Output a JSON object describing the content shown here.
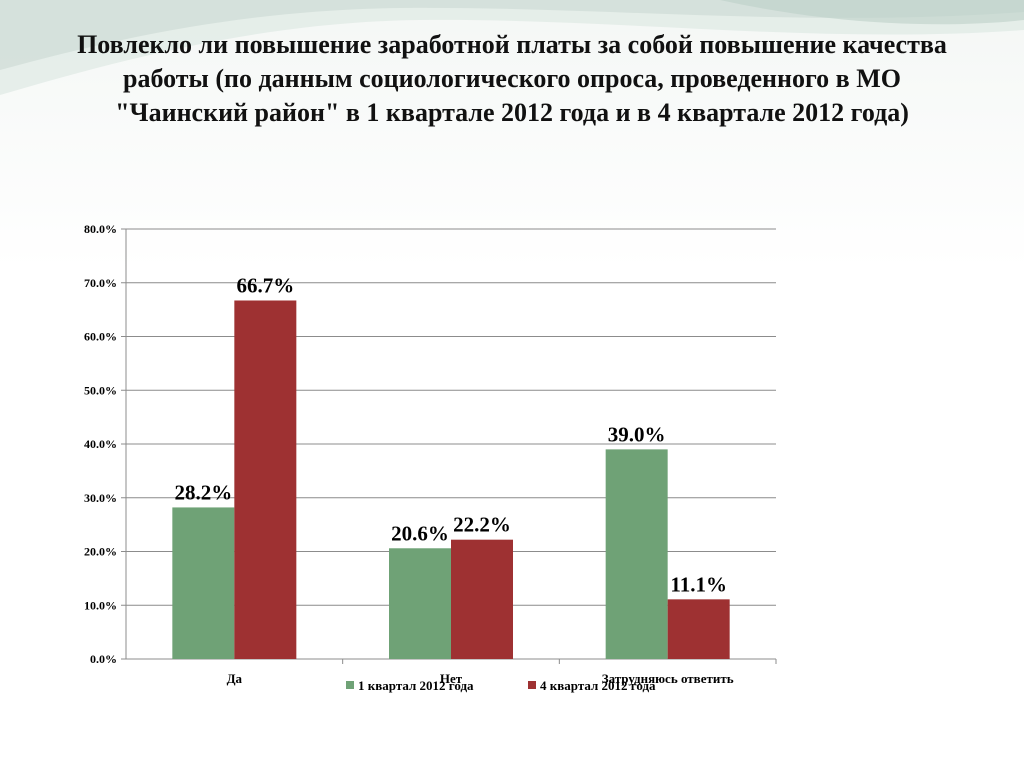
{
  "slide": {
    "title": "Повлекло ли повышение заработной платы за собой повышение качества работы (по данным социологического опроса, проведенного в МО \"Чаинский район\" в 1 квартале 2012 года и в 4 квартале 2012 года)"
  },
  "chart_data": {
    "type": "bar",
    "categories": [
      "Да",
      "Нет",
      "Затрудняюсь ответить"
    ],
    "series": [
      {
        "name": "1 квартал 2012 года",
        "values": [
          28.2,
          20.6,
          39.0
        ],
        "color": "#6fa276"
      },
      {
        "name": "4 квартал 2012 года",
        "values": [
          66.7,
          22.2,
          11.1
        ],
        "color": "#9e3132"
      }
    ],
    "data_labels": [
      [
        "28.2%",
        "20.6%",
        "39.0%"
      ],
      [
        "66.7%",
        "22.2%",
        "11.1%"
      ]
    ],
    "yticks": [
      "0.0%",
      "10.0%",
      "20.0%",
      "30.0%",
      "40.0%",
      "50.0%",
      "60.0%",
      "70.0%",
      "80.0%"
    ],
    "ylim": [
      0,
      80
    ],
    "grid": true,
    "legend": "bottom"
  }
}
